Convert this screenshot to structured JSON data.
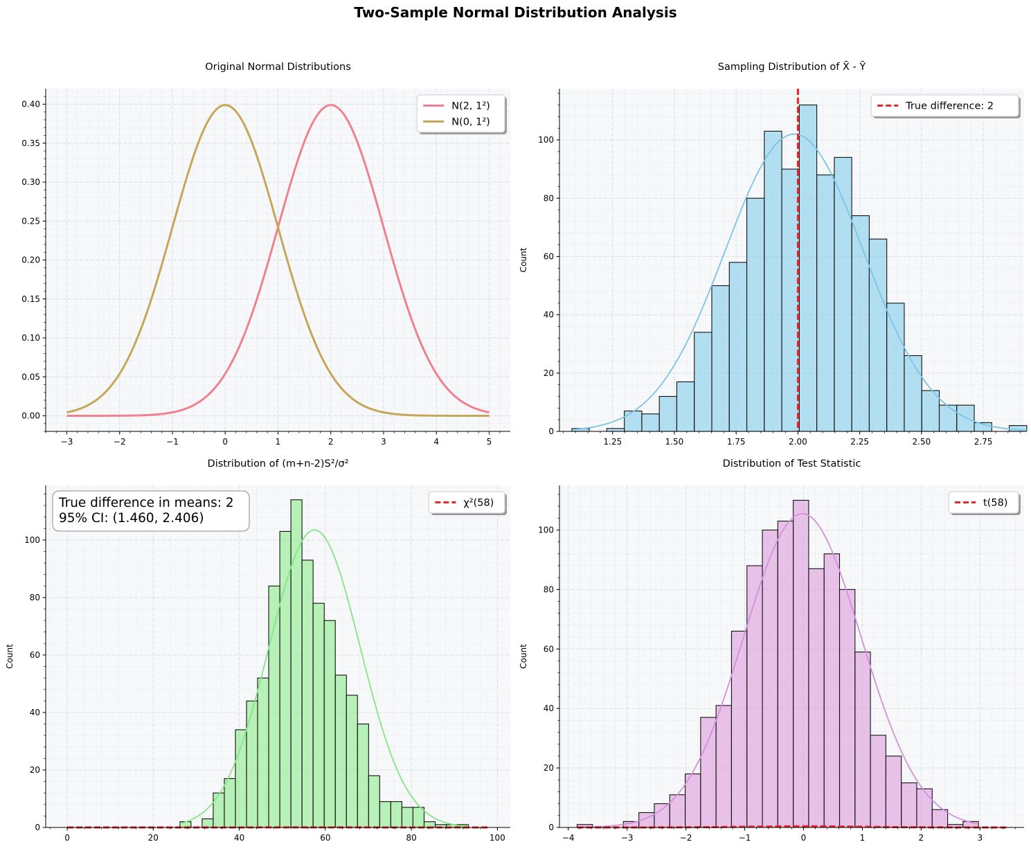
{
  "suptitle": "Two-Sample Normal Distribution Analysis",
  "colors": {
    "panel_bg": "#f7f8fa",
    "grid": "#d8dbe0",
    "red_line": "#e8262b",
    "pink": "#f08090",
    "tan": "#c6a658",
    "blue_fill": "#87ceeb",
    "blue_kde": "#7cc4e4",
    "green_fill": "#90ee90",
    "green_kde": "#86e386",
    "plum_fill": "#dda0dd",
    "plum_kde": "#d191d8"
  },
  "chart_data": [
    {
      "type": "line",
      "title": "Original Normal Distributions",
      "xlabel": "",
      "ylabel": "",
      "xlim": [
        -3.4,
        5.4
      ],
      "ylim": [
        -0.02,
        0.42
      ],
      "xticks": [
        "−3",
        "−2",
        "−1",
        "0",
        "1",
        "2",
        "3",
        "4",
        "5"
      ],
      "xtick_values": [
        -3,
        -2,
        -1,
        0,
        1,
        2,
        3,
        4,
        5
      ],
      "yticks": [
        "0.00",
        "0.05",
        "0.10",
        "0.15",
        "0.20",
        "0.25",
        "0.30",
        "0.35",
        "0.40"
      ],
      "ytick_values": [
        0,
        0.05,
        0.1,
        0.15,
        0.2,
        0.25,
        0.3,
        0.35,
        0.4
      ],
      "grid": true,
      "legend_position": "top-right",
      "x_range": [
        -3,
        5
      ],
      "series": [
        {
          "name": "N(2, 1²)",
          "mean": 2,
          "sd": 1,
          "color": "#f08090"
        },
        {
          "name": "N(0, 1²)",
          "mean": 0,
          "sd": 1,
          "color": "#c6a658"
        }
      ]
    },
    {
      "type": "bar",
      "title": "Sampling Distribution of X̄ - Ȳ",
      "xlabel": "",
      "ylabel": "Count",
      "xlim": [
        1.035,
        2.915
      ],
      "ylim": [
        0,
        117.6
      ],
      "xticks": [
        "1.25",
        "1.50",
        "1.75",
        "2.00",
        "2.25",
        "2.50",
        "2.75"
      ],
      "xtick_values": [
        1.25,
        1.5,
        1.75,
        2.0,
        2.25,
        2.5,
        2.75
      ],
      "yticks": [
        "0",
        "20",
        "40",
        "60",
        "80",
        "100"
      ],
      "ytick_values": [
        0,
        20,
        40,
        60,
        80,
        100
      ],
      "grid": true,
      "legend_position": "top-right",
      "bin_start": 1.085,
      "bin_width": 0.0708,
      "values": [
        1,
        0,
        1,
        7,
        6,
        12,
        17,
        34,
        50,
        58,
        80,
        103,
        90,
        112,
        88,
        94,
        74,
        66,
        44,
        26,
        14,
        9,
        9,
        3,
        0,
        2
      ],
      "kde": {
        "mean": 1.985,
        "sd": 0.28,
        "peak": 102
      },
      "reference_line": {
        "name": "True difference: 2",
        "x": 2.0
      },
      "fill": "#87ceeb",
      "kde_color": "#7cc4e4"
    },
    {
      "type": "bar",
      "title": "Distribution of (m+n-2)S²/σ²",
      "xlabel": "",
      "ylabel": "Count",
      "xlim": [
        -5,
        103
      ],
      "ylim": [
        0,
        119
      ],
      "xticks": [
        "0",
        "20",
        "40",
        "60",
        "80",
        "100"
      ],
      "xtick_values": [
        0,
        20,
        40,
        60,
        80,
        100
      ],
      "yticks": [
        "0",
        "20",
        "40",
        "60",
        "80",
        "100"
      ],
      "ytick_values": [
        0,
        20,
        40,
        60,
        80,
        100
      ],
      "grid": true,
      "legend_position": "top-right",
      "bin_start": 26.2,
      "bin_width": 2.58,
      "values": [
        2,
        0,
        3,
        12,
        17,
        34,
        44,
        52,
        84,
        103,
        114,
        93,
        78,
        72,
        53,
        46,
        36,
        18,
        9,
        9,
        7,
        7,
        2,
        1,
        1,
        1
      ],
      "kde": {
        "mean": 57.5,
        "sd": 10.6,
        "peak": 103.5
      },
      "reference_line": {
        "name": "χ²(58)",
        "dist": "chi2",
        "df": 58
      },
      "annotation": [
        "True difference in means: 2",
        "95% CI: (1.460, 2.406)"
      ],
      "fill": "#90ee90",
      "kde_color": "#86e386"
    },
    {
      "type": "bar",
      "title": "Distribution of Test Statistic",
      "xlabel": "",
      "ylabel": "Count",
      "xlim": [
        -4.15,
        3.75
      ],
      "ylim": [
        0,
        115
      ],
      "xticks": [
        "−4",
        "−3",
        "−2",
        "−1",
        "0",
        "1",
        "2",
        "3"
      ],
      "xtick_values": [
        -4,
        -3,
        -2,
        -1,
        0,
        1,
        2,
        3
      ],
      "yticks": [
        "0",
        "20",
        "40",
        "60",
        "80",
        "100"
      ],
      "ytick_values": [
        0,
        20,
        40,
        60,
        80,
        100
      ],
      "grid": true,
      "legend_position": "top-right",
      "bin_start": -3.85,
      "bin_width": 0.2625,
      "values": [
        1,
        0,
        0,
        2,
        5,
        8,
        11,
        18,
        37,
        41,
        66,
        88,
        100,
        103,
        110,
        87,
        92,
        80,
        59,
        31,
        24,
        15,
        13,
        6,
        1,
        2
      ],
      "kde": {
        "mean": -0.02,
        "sd": 1.0,
        "peak": 105.5
      },
      "reference_line": {
        "name": "t(58)",
        "dist": "t",
        "df": 58
      },
      "fill": "#dda0dd",
      "kde_color": "#d191d8"
    }
  ]
}
